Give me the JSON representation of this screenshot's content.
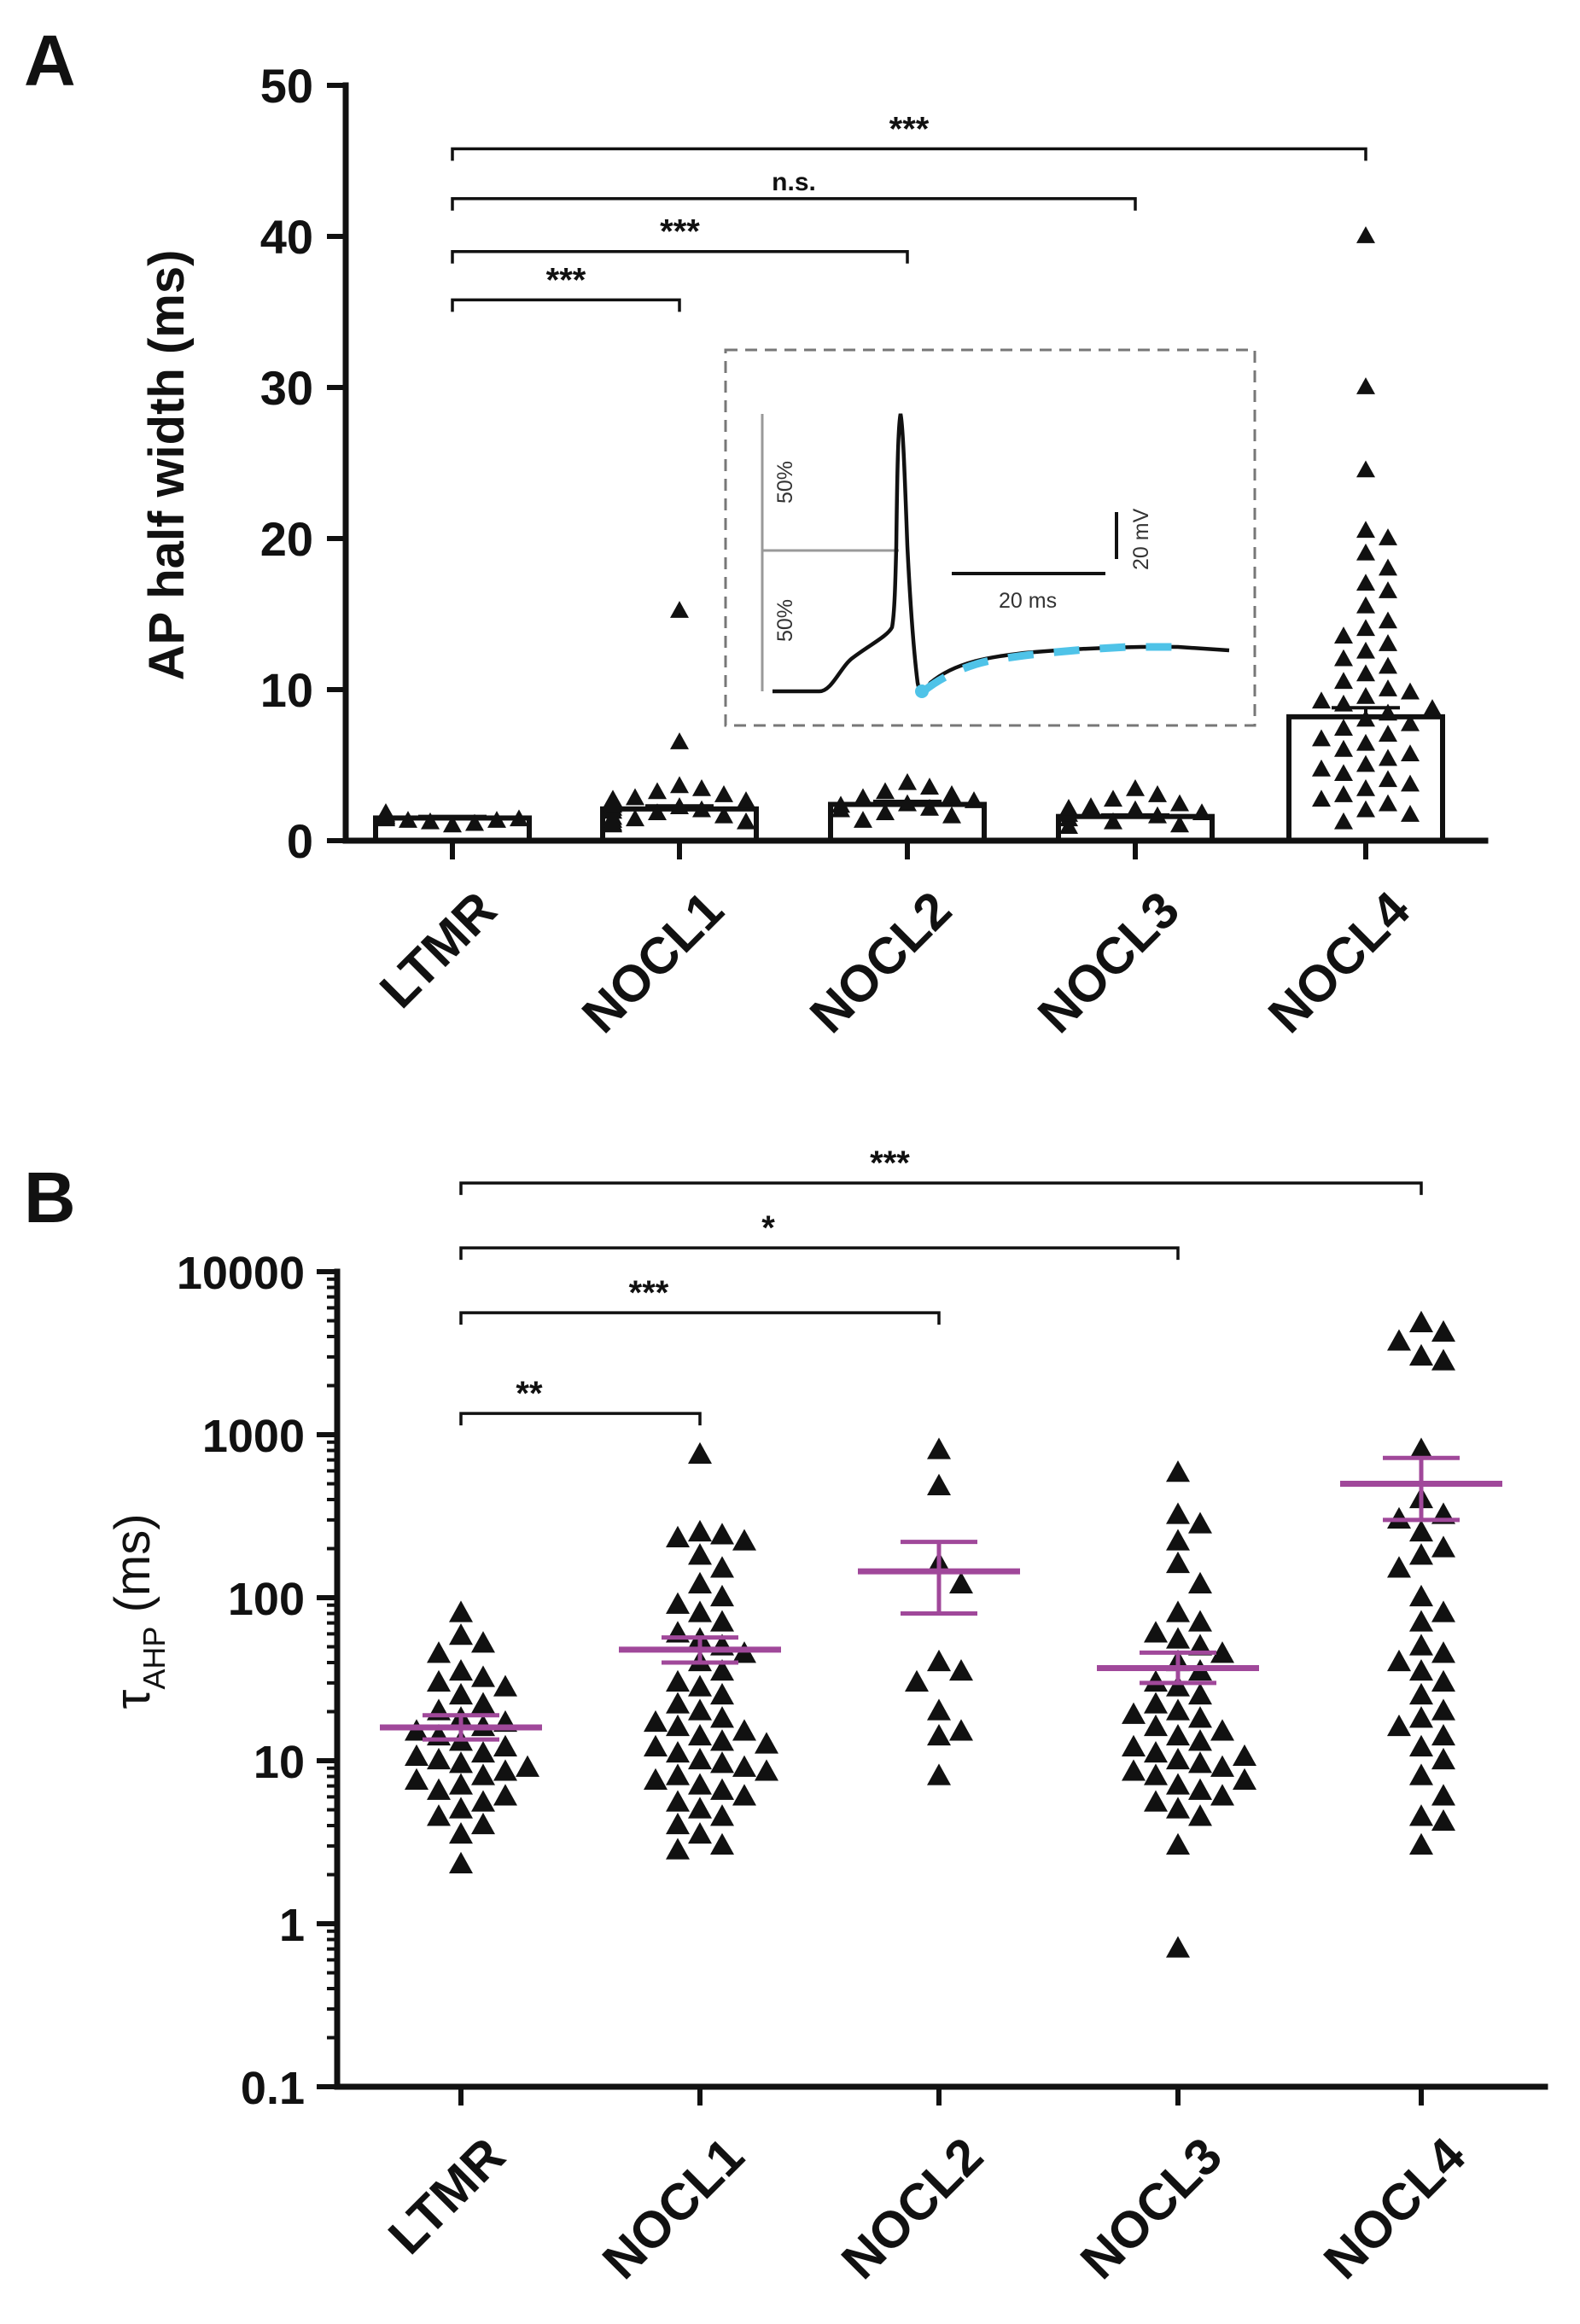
{
  "colors": {
    "axis": "#111111",
    "mean_sem": "#a0489a",
    "inset_trace": "#111111",
    "inset_fit": "#4fc3e8",
    "inset_guides": "#999999"
  },
  "chart_data": [
    {
      "panel": "A",
      "type": "bar",
      "categories": [
        "LTMR",
        "NOCL1",
        "NOCL2",
        "NOCL3",
        "NOCL4"
      ],
      "ylabel": "AP half width (ms)",
      "xlabel": "",
      "ylim": [
        0,
        50
      ],
      "yticks": [
        0,
        10,
        20,
        30,
        40,
        50
      ],
      "bar_values": [
        1.5,
        2.1,
        2.4,
        1.6,
        8.2
      ],
      "sem": [
        0.1,
        0.2,
        0.2,
        0.1,
        0.6
      ],
      "points": {
        "LTMR": [
          1.0,
          1.1,
          1.2,
          1.3,
          1.3,
          1.4,
          1.4,
          1.5,
          1.5,
          1.5,
          1.6,
          1.6,
          1.7,
          1.8,
          1.8
        ],
        "NOCL1": [
          15.2,
          6.5,
          3.6,
          3.4,
          3.2,
          3.0,
          2.8,
          2.6,
          2.4,
          2.2,
          2.1,
          2.0,
          1.9,
          1.8,
          1.6,
          1.5,
          1.4,
          1.3,
          1.2,
          1.1,
          1.0,
          2.7,
          2.3
        ],
        "NOCL2": [
          3.8,
          3.5,
          3.2,
          3.0,
          2.8,
          2.6,
          2.4,
          2.3,
          2.1,
          2.0,
          1.8,
          1.6,
          1.3
        ],
        "NOCL3": [
          3.4,
          3.0,
          2.7,
          2.4,
          2.2,
          2.0,
          1.8,
          1.6,
          1.4,
          1.2,
          1.0,
          0.9,
          1.7,
          2.1
        ],
        "NOCL4": [
          40.0,
          30.0,
          24.5,
          20.5,
          20.0,
          19.0,
          18.0,
          17.0,
          16.5,
          15.5,
          14.5,
          14.0,
          13.5,
          13.0,
          12.5,
          12.0,
          11.5,
          11.0,
          10.5,
          10.0,
          9.8,
          9.5,
          9.2,
          9.0,
          8.7,
          8.4,
          8.0,
          7.7,
          7.4,
          7.0,
          6.7,
          6.4,
          6.0,
          5.7,
          5.4,
          5.0,
          4.7,
          4.4,
          4.0,
          3.7,
          3.4,
          3.0,
          2.7,
          2.4,
          2.0,
          1.7,
          1.2
        ]
      },
      "comparisons": [
        {
          "from": "LTMR",
          "to": "NOCL1",
          "label": "***",
          "y": 35.8
        },
        {
          "from": "LTMR",
          "to": "NOCL2",
          "label": "***",
          "y": 39.0
        },
        {
          "from": "LTMR",
          "to": "NOCL3",
          "label": "n.s.",
          "y": 42.5
        },
        {
          "from": "LTMR",
          "to": "NOCL4",
          "label": "***",
          "y": 45.8
        }
      ],
      "inset": {
        "labels": {
          "upper_pct": "50%",
          "lower_pct": "50%",
          "time_scale": "20 ms",
          "voltage_scale": "20 mV"
        }
      }
    },
    {
      "panel": "B",
      "type": "scatter",
      "yscale": "log",
      "categories": [
        "LTMR",
        "NOCL1",
        "NOCL2",
        "NOCL3",
        "NOCL4"
      ],
      "ylabel_symbol": "τ",
      "ylabel_sub": "AHP",
      "ylabel_rest": " (ms)",
      "ylim": [
        0.1,
        10000
      ],
      "yticks": [
        0.1,
        1,
        10,
        100,
        1000,
        10000
      ],
      "yticklabels": [
        "0.1",
        "1",
        "10",
        "100",
        "1000",
        "10000"
      ],
      "mean": [
        16,
        48,
        145,
        37,
        500
      ],
      "sem": [
        [
          13.5,
          19
        ],
        [
          40,
          57
        ],
        [
          80,
          220
        ],
        [
          30,
          46
        ],
        [
          300,
          720
        ]
      ],
      "points": {
        "LTMR": [
          80,
          58,
          52,
          45,
          35,
          32,
          30,
          28,
          25,
          22,
          20,
          18,
          17,
          16,
          15,
          14,
          13,
          12,
          11,
          10.5,
          10,
          9.5,
          9,
          8.5,
          8,
          7.5,
          7,
          6.5,
          6,
          5.5,
          5,
          4.5,
          4,
          3.5,
          2.3
        ],
        "NOCL1": [
          750,
          250,
          240,
          230,
          220,
          180,
          150,
          120,
          100,
          90,
          80,
          70,
          60,
          55,
          50,
          45,
          40,
          35,
          30,
          28,
          25,
          22,
          20,
          18,
          16,
          15,
          14,
          13,
          12,
          11,
          10,
          9.5,
          9,
          8,
          7.5,
          7,
          6.5,
          6,
          5.5,
          5,
          4.5,
          4,
          3.5,
          3,
          2.8,
          8.5,
          12.5,
          17
        ],
        "NOCL2": [
          800,
          480,
          160,
          120,
          40,
          35,
          30,
          20,
          15,
          14,
          8
        ],
        "NOCL3": [
          580,
          320,
          280,
          220,
          160,
          120,
          80,
          70,
          60,
          55,
          50,
          45,
          40,
          35,
          30,
          28,
          25,
          22,
          20,
          18,
          16,
          15,
          14,
          13,
          12,
          11,
          10,
          9.5,
          9,
          8.5,
          8,
          7.5,
          7,
          6.5,
          6,
          5.5,
          5,
          4.5,
          3,
          0.7,
          10.5,
          19
        ],
        "NOCL4": [
          4800,
          4200,
          3700,
          3000,
          2800,
          800,
          400,
          320,
          300,
          250,
          200,
          180,
          150,
          100,
          80,
          70,
          50,
          45,
          40,
          35,
          30,
          25,
          20,
          18,
          16,
          14,
          12,
          10,
          8,
          6,
          4.5,
          4.2,
          3
        ]
      },
      "comparisons": [
        {
          "from": "LTMR",
          "to": "NOCL1",
          "label": "**",
          "y": 1350
        },
        {
          "from": "LTMR",
          "to": "NOCL2",
          "label": "***",
          "y": 5600
        },
        {
          "from": "LTMR",
          "to": "NOCL3",
          "label": "*",
          "y": 14000
        },
        {
          "from": "LTMR",
          "to": "NOCL4",
          "label": "***",
          "y": 35000
        }
      ]
    }
  ],
  "panel_labels": {
    "a": "A",
    "b": "B"
  }
}
